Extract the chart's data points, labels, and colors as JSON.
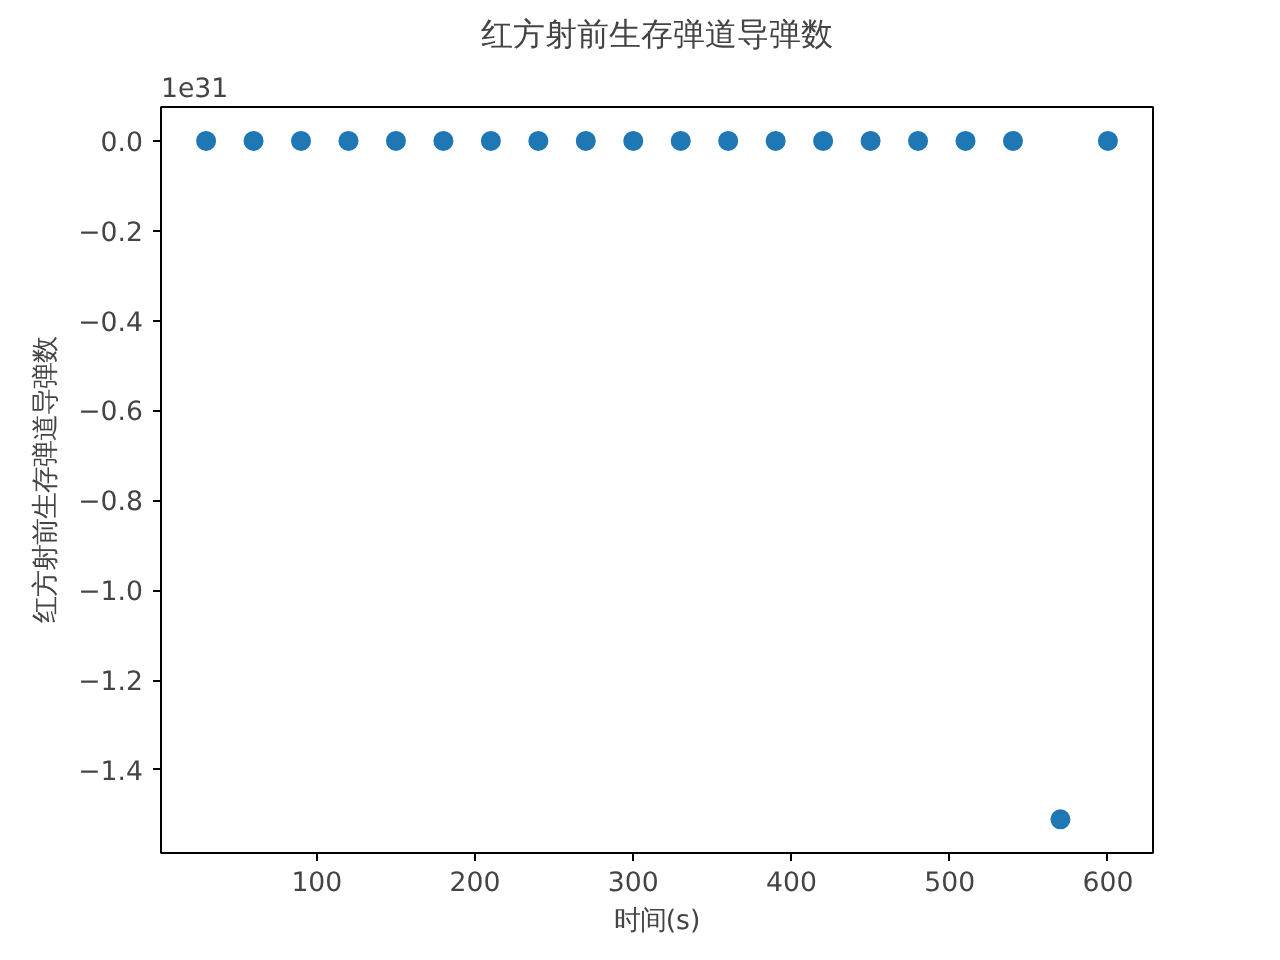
{
  "chart_data": {
    "type": "scatter",
    "title": "红方射前生存弹道导弹数",
    "xlabel": "时间(s)",
    "ylabel": "红方射前生存弹道导弹数",
    "annotations": [
      "1e31"
    ],
    "x": [
      30,
      60,
      90,
      120,
      150,
      180,
      210,
      240,
      270,
      300,
      330,
      360,
      390,
      420,
      450,
      480,
      510,
      540,
      570,
      600
    ],
    "series": [
      {
        "color": "#1f77b4",
        "values": [
          0,
          0,
          0,
          0,
          0,
          0,
          0,
          0,
          0,
          0,
          0,
          0,
          0,
          0,
          0,
          0,
          0,
          0,
          -1.51,
          0
        ]
      }
    ],
    "xlim": [
      1.5,
      628.5
    ],
    "ylim": [
      -1.585,
      0.0755
    ],
    "xticks": [
      100,
      200,
      300,
      400,
      500,
      600
    ],
    "yticks": [
      {
        "value": 0,
        "label": "0.0"
      },
      {
        "value": -0.2,
        "label": "−0.2"
      },
      {
        "value": -0.4,
        "label": "−0.4"
      },
      {
        "value": -0.6,
        "label": "−0.6"
      },
      {
        "value": -0.8,
        "label": "−0.8"
      },
      {
        "value": -1.0,
        "label": "−1.0"
      },
      {
        "value": -1.2,
        "label": "−1.2"
      },
      {
        "value": -1.4,
        "label": "−1.4"
      }
    ],
    "marker": "circle"
  }
}
